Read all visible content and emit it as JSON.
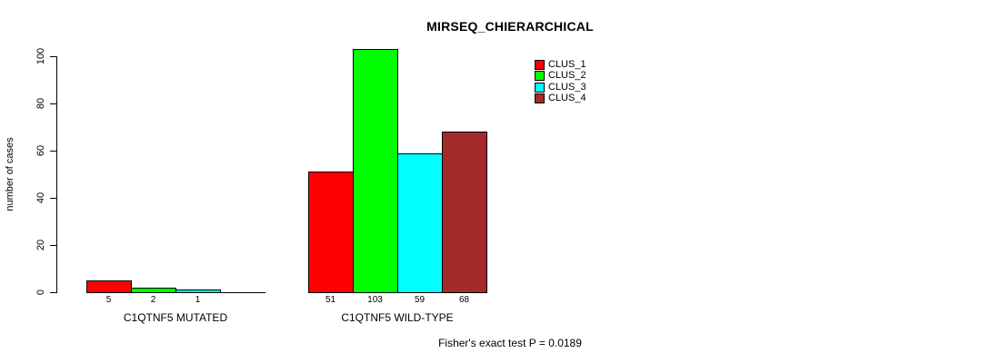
{
  "chart_data": {
    "type": "bar",
    "title": "MIRSEQ_CHIERARCHICAL",
    "ylabel": "number of cases",
    "xlabel": "",
    "ylim": [
      0,
      100
    ],
    "yticks": [
      0,
      20,
      40,
      60,
      80,
      100
    ],
    "grid": false,
    "legend_position": "top-right",
    "legend": [
      {
        "label": "CLUS_1",
        "color": "#ff0000"
      },
      {
        "label": "CLUS_2",
        "color": "#00ff00"
      },
      {
        "label": "CLUS_3",
        "color": "#00ffff"
      },
      {
        "label": "CLUS_4",
        "color": "#a52a2a"
      }
    ],
    "groups": [
      {
        "label": "C1QTNF5 MUTATED",
        "values": [
          5,
          2,
          1,
          0
        ],
        "bar_labels": [
          "5",
          "2",
          "1",
          null
        ]
      },
      {
        "label": "C1QTNF5 WILD-TYPE",
        "values": [
          51,
          103,
          59,
          68
        ],
        "bar_labels": [
          "51",
          "103",
          "59",
          "68"
        ]
      }
    ],
    "annotation": "Fisher's exact test P = 0.0189"
  }
}
